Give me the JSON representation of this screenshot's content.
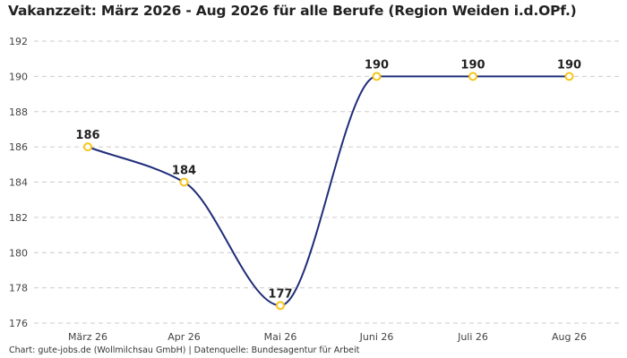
{
  "chart_data": {
    "type": "line",
    "title": "Vakanzzeit: März 2026 - Aug 2026 für alle Berufe (Region Weiden i.d.OPf.)",
    "categories": [
      "März 26",
      "Apr 26",
      "Mai 26",
      "Juni 26",
      "Juli 26",
      "Aug 26"
    ],
    "series": [
      {
        "values": [
          186,
          184,
          177,
          190,
          190,
          190
        ]
      }
    ],
    "ylim": [
      176,
      192
    ],
    "yticks": [
      176,
      178,
      180,
      182,
      184,
      186,
      188,
      190,
      192
    ],
    "xlabel": "",
    "ylabel": "",
    "grid": true,
    "line_color": "#1f2d7a",
    "marker_color": "#f5c51b",
    "footer": "Chart: gute-jobs.de (Wollmilchsau GmbH) | Datenquelle: Bundesagentur für Arbeit"
  }
}
